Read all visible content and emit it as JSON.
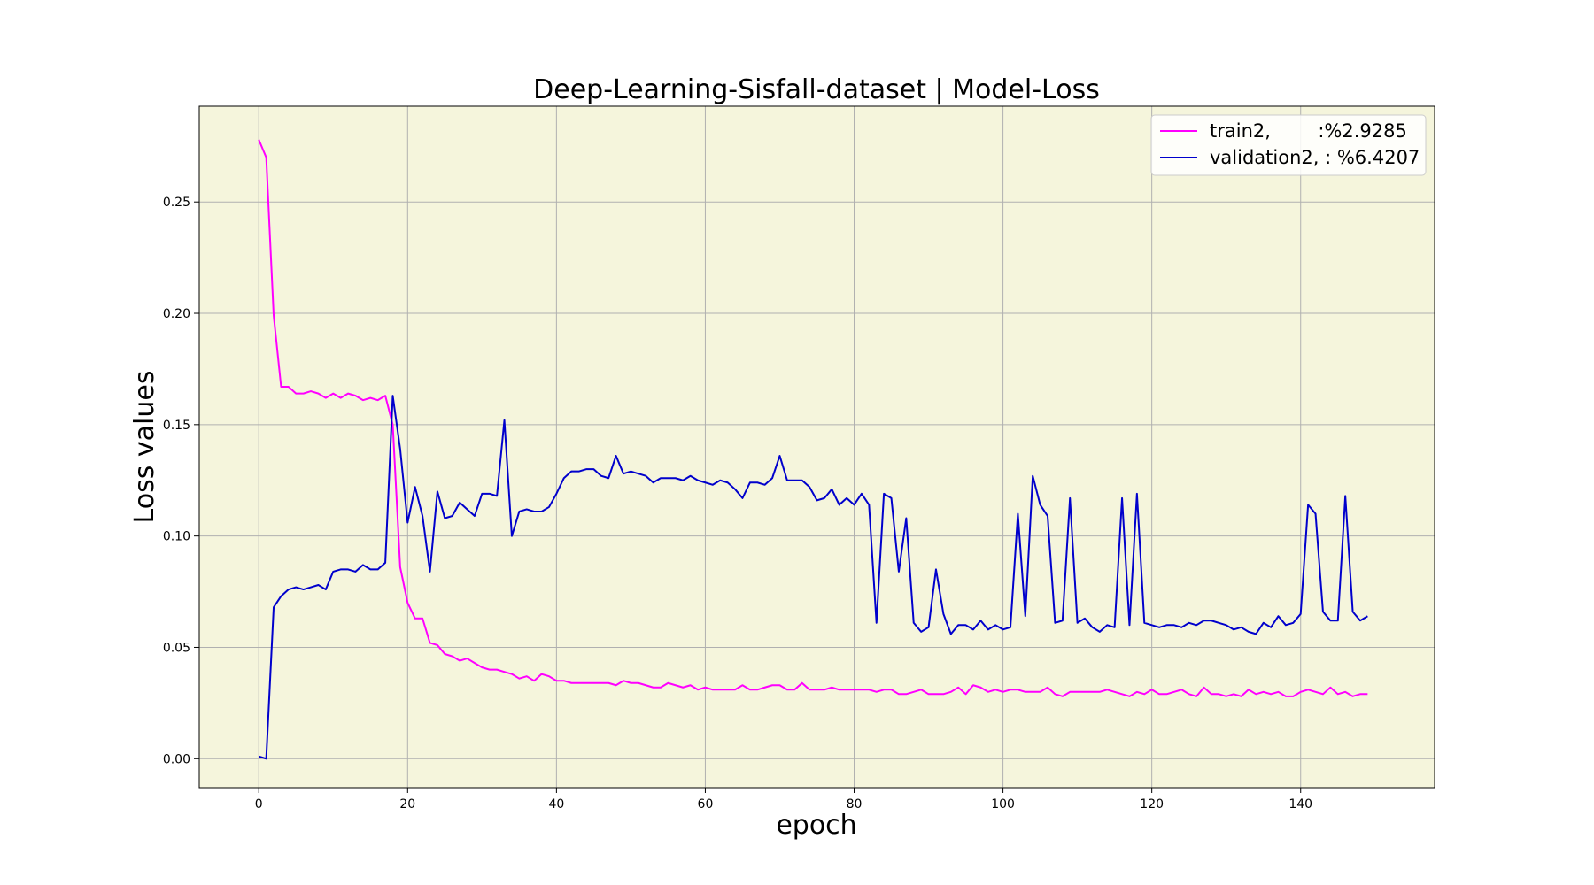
{
  "chart_data": {
    "type": "line",
    "title": "Deep-Learning-Sisfall-dataset  | Model-Loss",
    "xlabel": "epoch",
    "ylabel": "Loss values",
    "xlim": [
      -8,
      158
    ],
    "ylim": [
      -0.013,
      0.293
    ],
    "xticks": [
      0,
      20,
      40,
      60,
      80,
      100,
      120,
      140
    ],
    "yticks": [
      0.0,
      0.05,
      0.1,
      0.15,
      0.2,
      0.25
    ],
    "xtick_labels": [
      "0",
      "20",
      "40",
      "60",
      "80",
      "100",
      "120",
      "140"
    ],
    "ytick_labels": [
      "0.00",
      "0.05",
      "0.10",
      "0.15",
      "0.20",
      "0.25"
    ],
    "grid": true,
    "legend_position": "top-right",
    "plot_background": "#f5f5dc",
    "series": [
      {
        "name": "train2,        :%2.9285",
        "color": "#ff00ff",
        "values": [
          0.278,
          0.27,
          0.199,
          0.167,
          0.167,
          0.164,
          0.164,
          0.165,
          0.164,
          0.162,
          0.164,
          0.162,
          0.164,
          0.163,
          0.161,
          0.162,
          0.161,
          0.163,
          0.15,
          0.086,
          0.07,
          0.063,
          0.063,
          0.052,
          0.051,
          0.047,
          0.046,
          0.044,
          0.045,
          0.043,
          0.041,
          0.04,
          0.04,
          0.039,
          0.038,
          0.036,
          0.037,
          0.035,
          0.038,
          0.037,
          0.035,
          0.035,
          0.034,
          0.034,
          0.034,
          0.034,
          0.034,
          0.034,
          0.033,
          0.035,
          0.034,
          0.034,
          0.033,
          0.032,
          0.032,
          0.034,
          0.033,
          0.032,
          0.033,
          0.031,
          0.032,
          0.031,
          0.031,
          0.031,
          0.031,
          0.033,
          0.031,
          0.031,
          0.032,
          0.033,
          0.033,
          0.031,
          0.031,
          0.034,
          0.031,
          0.031,
          0.031,
          0.032,
          0.031,
          0.031,
          0.031,
          0.031,
          0.031,
          0.03,
          0.031,
          0.031,
          0.029,
          0.029,
          0.03,
          0.031,
          0.029,
          0.029,
          0.029,
          0.03,
          0.032,
          0.029,
          0.033,
          0.032,
          0.03,
          0.031,
          0.03,
          0.031,
          0.031,
          0.03,
          0.03,
          0.03,
          0.032,
          0.029,
          0.028,
          0.03,
          0.03,
          0.03,
          0.03,
          0.03,
          0.031,
          0.03,
          0.029,
          0.028,
          0.03,
          0.029,
          0.031,
          0.029,
          0.029,
          0.03,
          0.031,
          0.029,
          0.028,
          0.032,
          0.029,
          0.029,
          0.028,
          0.029,
          0.028,
          0.031,
          0.029,
          0.03,
          0.029,
          0.03,
          0.028,
          0.028,
          0.03,
          0.031,
          0.03,
          0.029,
          0.032,
          0.029,
          0.03,
          0.028,
          0.029,
          0.029
        ]
      },
      {
        "name": "validation2, : %6.4207",
        "color": "#0000cc",
        "values": [
          0.001,
          0.0,
          0.068,
          0.073,
          0.076,
          0.077,
          0.076,
          0.077,
          0.078,
          0.076,
          0.084,
          0.085,
          0.085,
          0.084,
          0.087,
          0.085,
          0.085,
          0.088,
          0.163,
          0.139,
          0.106,
          0.122,
          0.109,
          0.084,
          0.12,
          0.108,
          0.109,
          0.115,
          0.112,
          0.109,
          0.119,
          0.119,
          0.118,
          0.152,
          0.1,
          0.111,
          0.112,
          0.111,
          0.111,
          0.113,
          0.119,
          0.126,
          0.129,
          0.129,
          0.13,
          0.13,
          0.127,
          0.126,
          0.136,
          0.128,
          0.129,
          0.128,
          0.127,
          0.124,
          0.126,
          0.126,
          0.126,
          0.125,
          0.127,
          0.125,
          0.124,
          0.123,
          0.125,
          0.124,
          0.121,
          0.117,
          0.124,
          0.124,
          0.123,
          0.126,
          0.136,
          0.125,
          0.125,
          0.125,
          0.122,
          0.116,
          0.117,
          0.121,
          0.114,
          0.117,
          0.114,
          0.119,
          0.114,
          0.061,
          0.119,
          0.117,
          0.084,
          0.108,
          0.061,
          0.057,
          0.059,
          0.085,
          0.065,
          0.056,
          0.06,
          0.06,
          0.058,
          0.062,
          0.058,
          0.06,
          0.058,
          0.059,
          0.11,
          0.064,
          0.127,
          0.114,
          0.109,
          0.061,
          0.062,
          0.117,
          0.061,
          0.063,
          0.059,
          0.057,
          0.06,
          0.059,
          0.117,
          0.06,
          0.119,
          0.061,
          0.06,
          0.059,
          0.06,
          0.06,
          0.059,
          0.061,
          0.06,
          0.062,
          0.062,
          0.061,
          0.06,
          0.058,
          0.059,
          0.057,
          0.056,
          0.061,
          0.059,
          0.064,
          0.06,
          0.061,
          0.065,
          0.114,
          0.11,
          0.066,
          0.062,
          0.062,
          0.118,
          0.066,
          0.062,
          0.064
        ]
      }
    ]
  }
}
